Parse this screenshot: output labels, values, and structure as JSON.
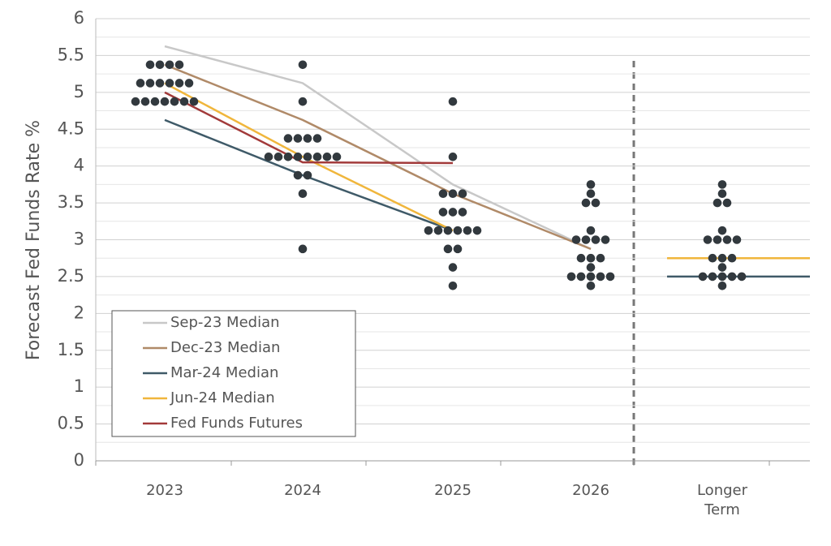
{
  "chart_data": {
    "type": "dot-plot",
    "y_label": "Forecast Fed Funds Rate %",
    "categories": [
      "2023",
      "2024",
      "2025",
      "2026",
      "Longer\nTerm"
    ],
    "ylim": [
      0,
      6
    ],
    "yticks": [
      0,
      0.5,
      1,
      1.5,
      2,
      2.5,
      3,
      3.5,
      4,
      4.5,
      5,
      5.5,
      6
    ],
    "grid": true,
    "minor_grid": true,
    "dot_color": "#32393e",
    "dots": [
      [
        5.375,
        5.375,
        5.375,
        5.375,
        5.125,
        5.125,
        5.125,
        5.125,
        5.125,
        5.125,
        4.875,
        4.875,
        4.875,
        4.875,
        4.875,
        4.875,
        4.875
      ],
      [
        5.375,
        4.875,
        4.375,
        4.375,
        4.375,
        4.375,
        4.125,
        4.125,
        4.125,
        4.125,
        4.125,
        4.125,
        4.125,
        4.125,
        3.875,
        3.875,
        3.625,
        2.875
      ],
      [
        4.875,
        4.125,
        3.625,
        3.625,
        3.625,
        3.375,
        3.375,
        3.375,
        3.125,
        3.125,
        3.125,
        3.125,
        3.125,
        3.125,
        2.875,
        2.875,
        2.625,
        2.375
      ],
      [
        3.75,
        3.625,
        3.5,
        3.5,
        3.125,
        3,
        3,
        3,
        3,
        2.75,
        2.75,
        2.75,
        2.625,
        2.5,
        2.5,
        2.5,
        2.5,
        2.5,
        2.375
      ],
      [
        3.75,
        3.625,
        3.5,
        3.5,
        3.125,
        3,
        3,
        3,
        3,
        2.75,
        2.75,
        2.75,
        2.625,
        2.5,
        2.5,
        2.5,
        2.5,
        2.5,
        2.375
      ]
    ],
    "series": [
      {
        "name": "Sep-23 Median",
        "color": "#c8c8c8",
        "values": [
          5.625,
          5.125,
          3.75,
          2.875,
          null
        ]
      },
      {
        "name": "Dec-23 Median",
        "color": "#b08a68",
        "values": [
          5.375,
          4.625,
          3.625,
          2.875,
          null
        ]
      },
      {
        "name": "Mar-24 Median",
        "color": "#3f5a68",
        "values": [
          4.625,
          3.875,
          3.125,
          null,
          2.5
        ]
      },
      {
        "name": "Jun-24 Median",
        "color": "#f0b63c",
        "values": [
          5.125,
          4.125,
          3.125,
          null,
          2.75
        ]
      },
      {
        "name": "Fed Funds Futures",
        "color": "#a23a3a",
        "values": [
          5,
          4.05,
          4.04,
          null,
          null
        ]
      }
    ]
  }
}
